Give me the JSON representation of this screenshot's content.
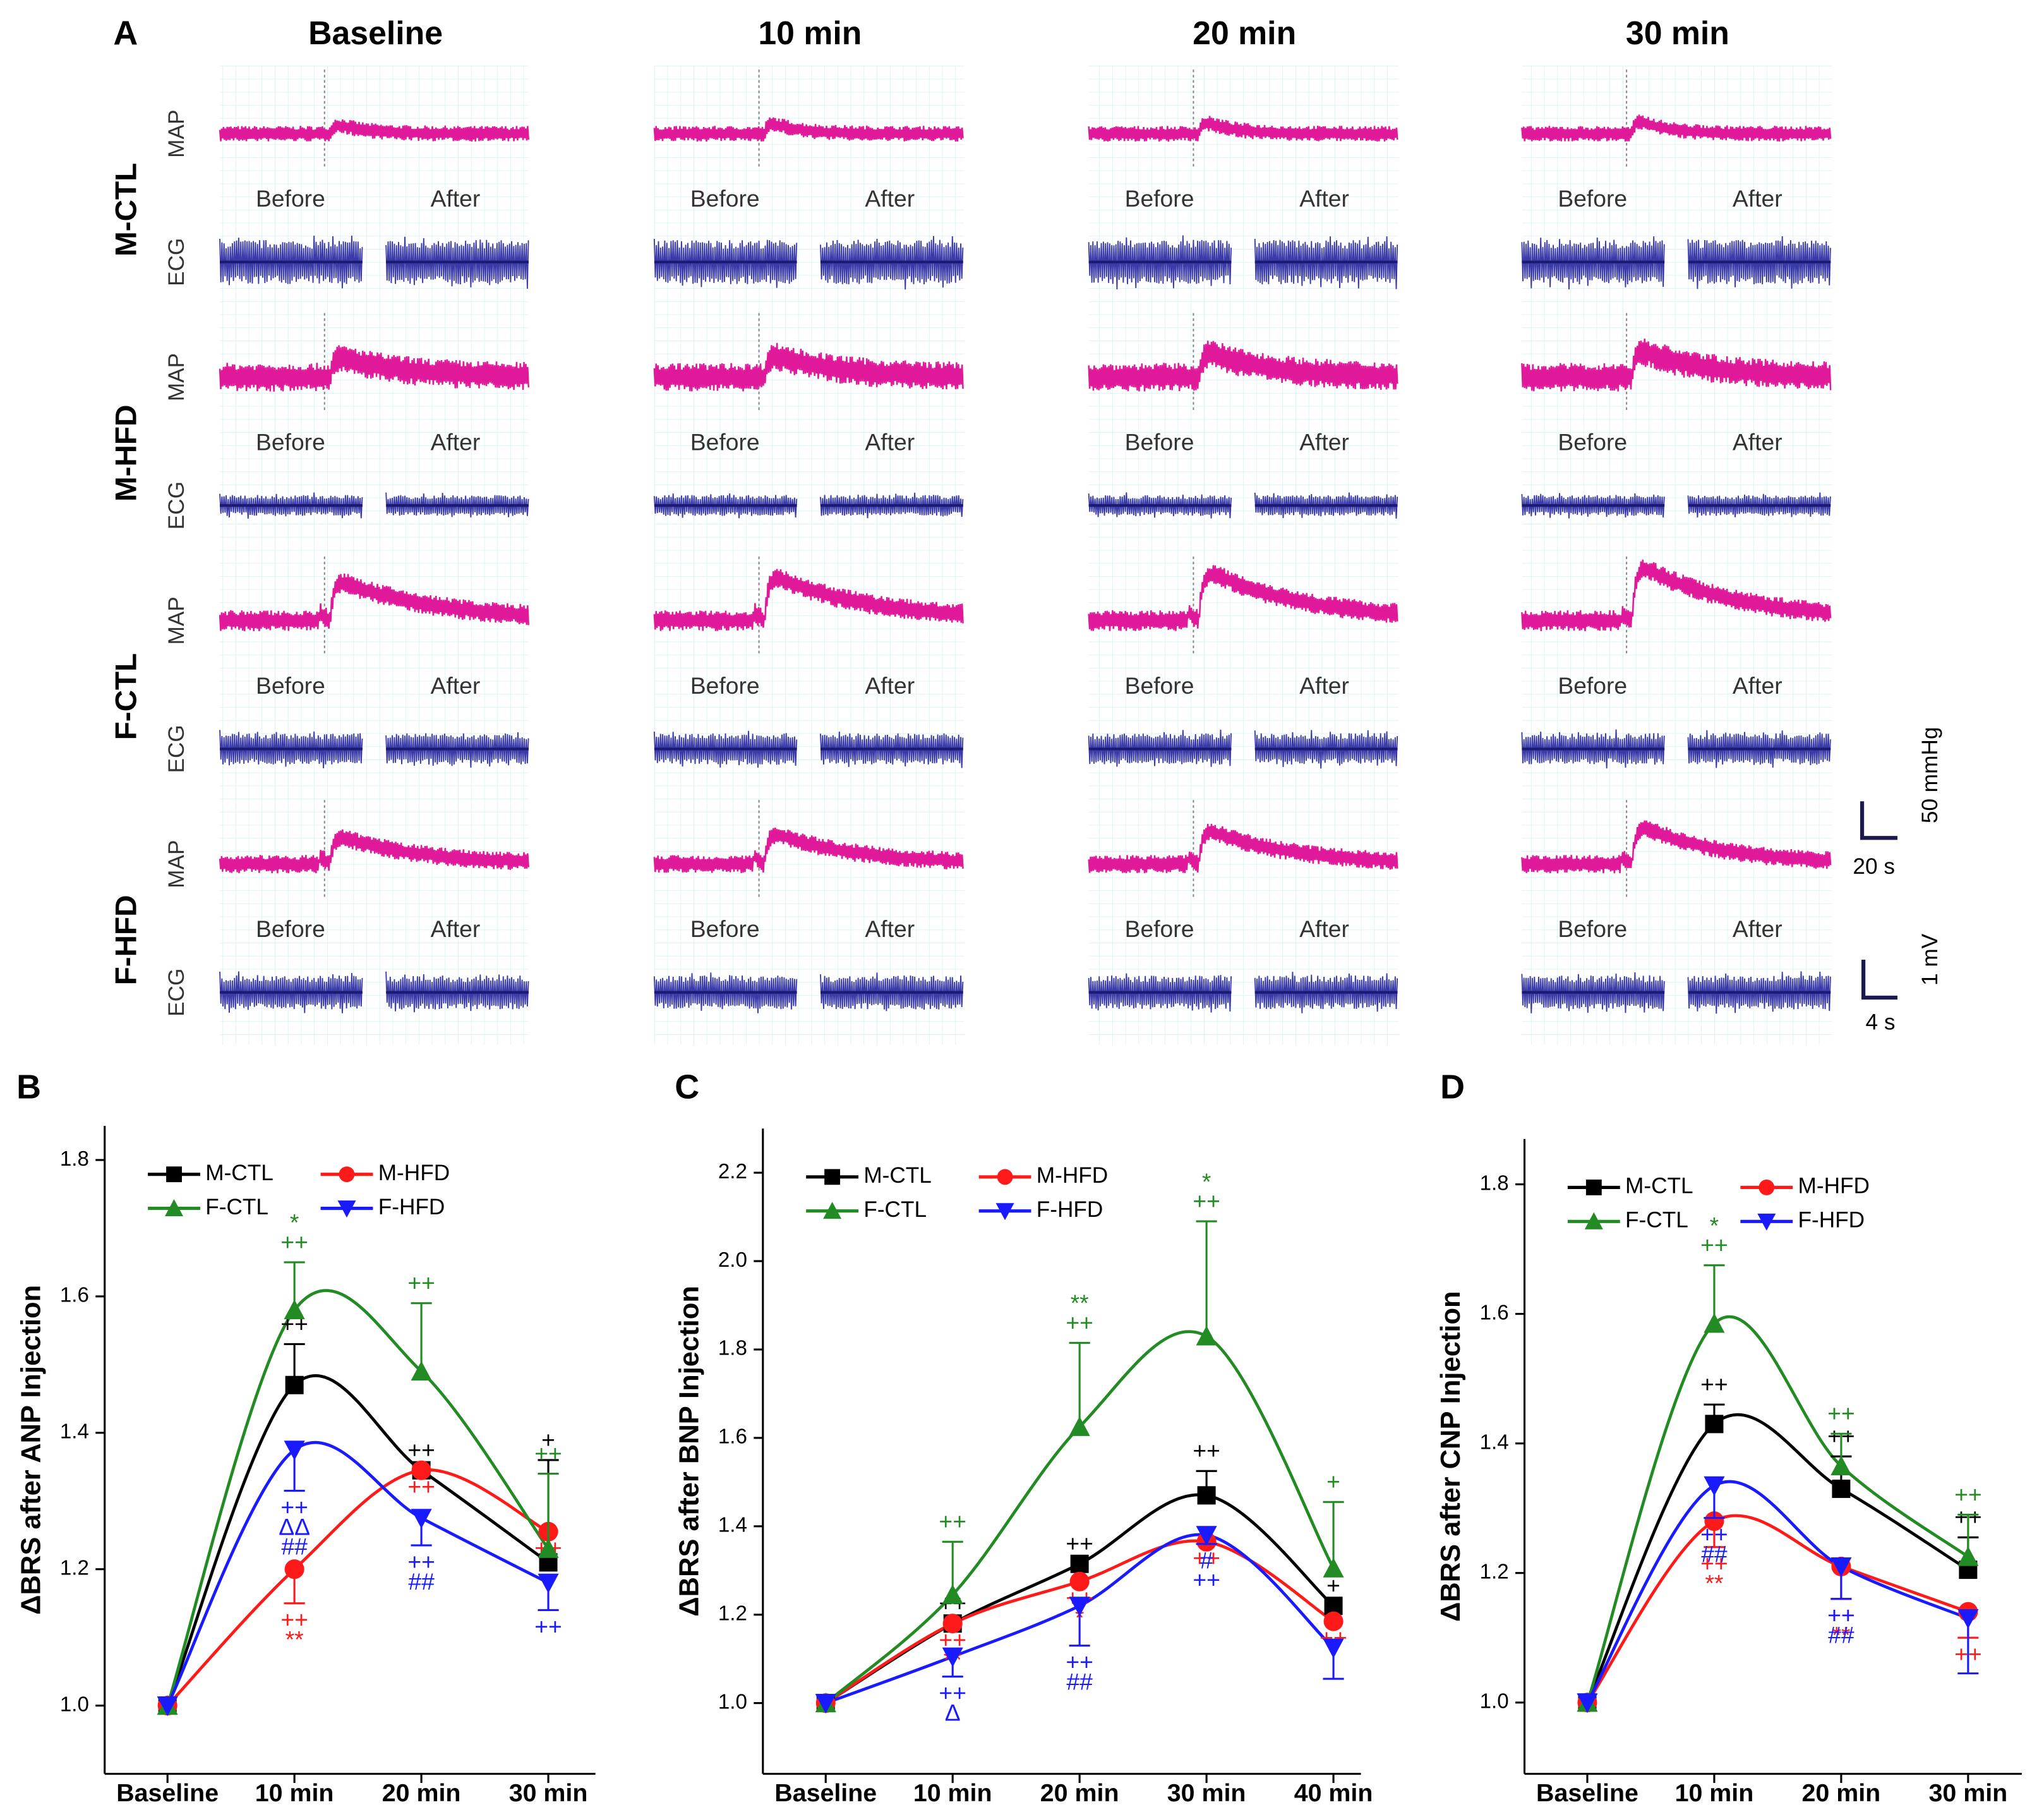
{
  "panel_a": {
    "label": "A",
    "columns": [
      "Baseline",
      "10 min",
      "20 min",
      "30 min"
    ],
    "rows": [
      "M-CTL",
      "M-HFD",
      "F-CTL",
      "F-HFD"
    ],
    "channels": [
      "MAP",
      "ECG"
    ],
    "phases": [
      "Before",
      "After"
    ],
    "scale_bars": [
      "50 mmHg",
      "20 s",
      "1 mV",
      "4 s"
    ]
  },
  "chart_data": [
    {
      "type": "line",
      "label": "B",
      "y_label": "ΔBRS after ANP Injection",
      "categories": [
        "Baseline",
        "10 min",
        "20 min",
        "30 min"
      ],
      "ylim": [
        0.9,
        1.85
      ],
      "yticks": [
        {
          "value": 1,
          "label": "1.0"
        },
        1.2,
        1.4,
        1.6,
        1.8
      ],
      "series": [
        {
          "name": "M-CTL",
          "color": "#000000",
          "marker": "square",
          "error_side": "up",
          "values": [
            1.0,
            1.47,
            1.345,
            1.21
          ],
          "errors": [
            0,
            0.06,
            0,
            0.15
          ],
          "markers": [
            null,
            [
              "++"
            ],
            [
              "++"
            ],
            [
              "+"
            ]
          ]
        },
        {
          "name": "M-HFD",
          "color": "#ff1a1a",
          "marker": "circle",
          "error_side": "down",
          "values": [
            1.0,
            1.2,
            1.345,
            1.255
          ],
          "errors": [
            0,
            0.05,
            0,
            0
          ],
          "markers": [
            null,
            [
              "++",
              "**"
            ],
            [
              "++"
            ],
            [
              "++"
            ]
          ]
        },
        {
          "name": "F-CTL",
          "color": "#238b23",
          "marker": "triangle",
          "error_side": "up",
          "values": [
            1.0,
            1.58,
            1.49,
            1.23
          ],
          "errors": [
            0,
            0.07,
            0.1,
            0.11
          ],
          "markers": [
            null,
            [
              "*",
              "++"
            ],
            [
              "++"
            ],
            [
              "++"
            ]
          ]
        },
        {
          "name": "F-HFD",
          "color": "#1a1aff",
          "marker": "triangle-down",
          "error_side": "down",
          "values": [
            1.0,
            1.375,
            1.275,
            1.18
          ],
          "errors": [
            0,
            0.06,
            0.04,
            0.04
          ],
          "markers": [
            null,
            [
              "++",
              "ΔΔ",
              "##"
            ],
            [
              "++",
              "##"
            ],
            [
              "++"
            ]
          ]
        }
      ]
    },
    {
      "type": "line",
      "label": "C",
      "y_label": "ΔBRS after BNP Injection",
      "categories": [
        "Baseline",
        "10 min",
        "20 min",
        "30 min",
        "40 min"
      ],
      "ylim": [
        0.84,
        2.3
      ],
      "yticks": [
        {
          "value": 1,
          "label": "1.0"
        },
        1.2,
        1.4,
        1.6,
        1.8,
        {
          "value": 2,
          "label": "2.0"
        },
        2.2
      ],
      "series": [
        {
          "name": "M-CTL",
          "color": "#000000",
          "marker": "square",
          "error_side": "up",
          "values": [
            1.0,
            1.18,
            1.315,
            1.47,
            1.22
          ],
          "errors": [
            0,
            0,
            0,
            0.055,
            0
          ],
          "markers": [
            null,
            [
              "++"
            ],
            [
              "++"
            ],
            [
              "++"
            ],
            [
              "+"
            ]
          ]
        },
        {
          "name": "M-HFD",
          "color": "#ff1a1a",
          "marker": "circle",
          "error_side": "down",
          "values": [
            1.0,
            1.18,
            1.275,
            1.365,
            1.185
          ],
          "errors": [
            0,
            0,
            0,
            0,
            0
          ],
          "markers": [
            null,
            [
              "++",
              "**"
            ],
            [
              "++",
              "*"
            ],
            [
              "++"
            ],
            [
              "++"
            ]
          ]
        },
        {
          "name": "F-CTL",
          "color": "#238b23",
          "marker": "triangle",
          "error_side": "up",
          "values": [
            1.0,
            1.245,
            1.625,
            1.83,
            1.305
          ],
          "errors": [
            0,
            0.12,
            0.19,
            0.26,
            0.15
          ],
          "markers": [
            null,
            [
              "++"
            ],
            [
              "**",
              "++"
            ],
            [
              "*",
              "++"
            ],
            [
              "+"
            ]
          ]
        },
        {
          "name": "F-HFD",
          "color": "#1a1aff",
          "marker": "triangle-down",
          "error_side": "down",
          "values": [
            1.0,
            1.105,
            1.22,
            1.38,
            1.125
          ],
          "errors": [
            0,
            0.045,
            0.09,
            0.02,
            0.07
          ],
          "markers": [
            null,
            [
              "++",
              "Δ"
            ],
            [
              "++",
              "##"
            ],
            [
              "#",
              "++"
            ],
            null
          ]
        }
      ]
    },
    {
      "type": "line",
      "label": "D",
      "y_label": "ΔBRS after CNP Injection",
      "categories": [
        "Baseline",
        "10 min",
        "20 min",
        "30 min"
      ],
      "ylim": [
        0.89,
        1.87
      ],
      "yticks": [
        {
          "value": 1,
          "label": "1.0"
        },
        1.2,
        1.4,
        1.6,
        1.8
      ],
      "series": [
        {
          "name": "M-CTL",
          "color": "#000000",
          "marker": "square",
          "error_side": "up",
          "values": [
            1.0,
            1.43,
            1.33,
            1.205
          ],
          "errors": [
            0,
            0.03,
            0.05,
            0.05
          ],
          "markers": [
            null,
            [
              "++"
            ],
            [
              "++"
            ],
            [
              "++"
            ]
          ]
        },
        {
          "name": "M-HFD",
          "color": "#ff1a1a",
          "marker": "circle",
          "error_side": "down",
          "values": [
            1.0,
            1.28,
            1.21,
            1.14
          ],
          "errors": [
            0,
            0.04,
            0.05,
            0.04
          ],
          "markers": [
            null,
            [
              "++",
              "**"
            ],
            [
              "++",
              "**"
            ],
            [
              "++"
            ]
          ]
        },
        {
          "name": "F-CTL",
          "color": "#238b23",
          "marker": "triangle",
          "error_side": "up",
          "values": [
            1.0,
            1.585,
            1.365,
            1.225
          ],
          "errors": [
            0,
            0.09,
            0.05,
            0.065
          ],
          "markers": [
            null,
            [
              "*",
              "++"
            ],
            [
              "++"
            ],
            [
              "++"
            ]
          ]
        },
        {
          "name": "F-HFD",
          "color": "#1a1aff",
          "marker": "triangle-down",
          "error_side": "down",
          "values": [
            1.0,
            1.335,
            1.21,
            1.13
          ],
          "errors": [
            0,
            0.05,
            0.05,
            0.085
          ],
          "markers": [
            null,
            [
              "++",
              "##"
            ],
            [
              "++",
              "##"
            ],
            null
          ]
        }
      ]
    }
  ]
}
